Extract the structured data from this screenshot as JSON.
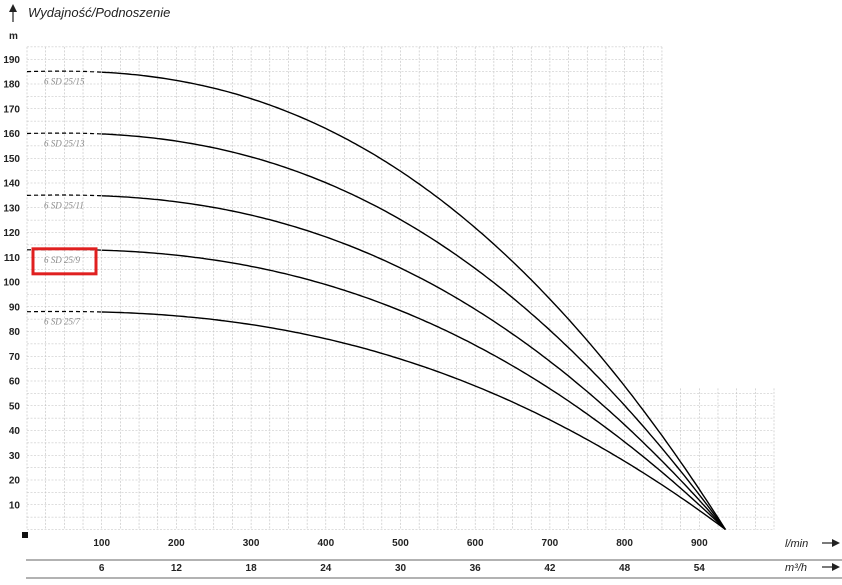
{
  "chart_data": {
    "type": "line",
    "title": "Wydajność/Podnoszenie",
    "ylabel": "m",
    "ylim": [
      0,
      195
    ],
    "y_ticks": [
      10,
      20,
      30,
      40,
      50,
      60,
      70,
      80,
      90,
      100,
      110,
      120,
      130,
      140,
      150,
      160,
      170,
      180,
      190
    ],
    "x_primary": {
      "label": "l/min",
      "ticks": [
        100,
        200,
        300,
        400,
        500,
        600,
        700,
        800,
        900
      ]
    },
    "x_secondary": {
      "label": "m³/h",
      "ticks": [
        6,
        12,
        18,
        24,
        30,
        36,
        42,
        48,
        54
      ]
    },
    "xlim_lmin": [
      0,
      1000
    ],
    "grid": true,
    "series": [
      {
        "name": "6 SD 25/15",
        "shutoff": 185,
        "dashed_until": 100,
        "zero_flow_at": 935,
        "highlighted": false
      },
      {
        "name": "6 SD 25/13",
        "shutoff": 160,
        "dashed_until": 100,
        "zero_flow_at": 935,
        "highlighted": false
      },
      {
        "name": "6 SD 25/11",
        "shutoff": 135,
        "dashed_until": 100,
        "zero_flow_at": 935,
        "highlighted": false
      },
      {
        "name": "6 SD 25/9",
        "shutoff": 113,
        "dashed_until": 100,
        "zero_flow_at": 935,
        "highlighted": true
      },
      {
        "name": "6 SD 25/7",
        "shutoff": 88,
        "dashed_until": 100,
        "zero_flow_at": 935,
        "highlighted": false
      }
    ],
    "highlight_color": "#e02020",
    "grid_color": "#bdbdbd",
    "line_color": "#000000"
  }
}
